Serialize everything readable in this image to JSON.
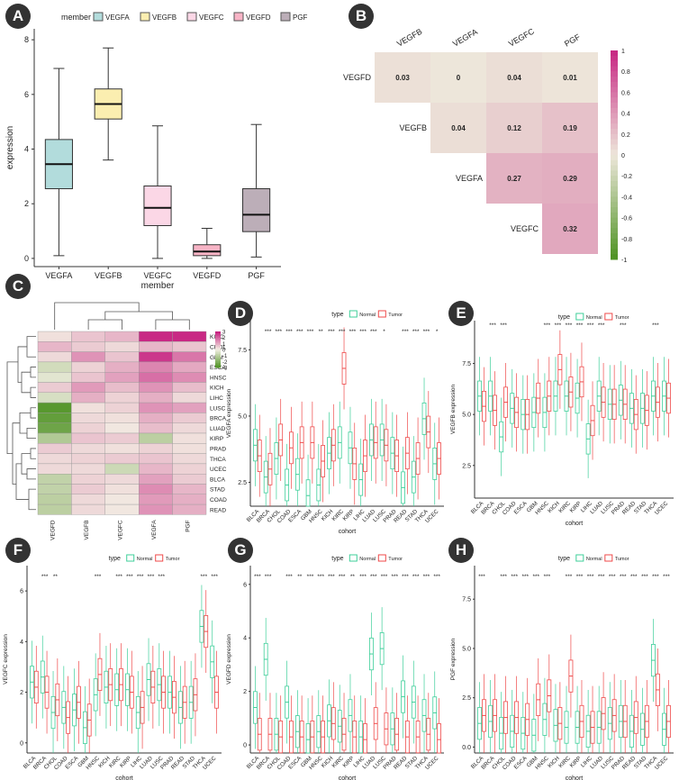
{
  "panels": {
    "a": "A",
    "b": "B",
    "c": "C",
    "d": "D",
    "e": "E",
    "f": "F",
    "g": "G",
    "h": "H"
  },
  "colors": {
    "normal": "#3ecf9a",
    "tumor": "#ef4a4a",
    "pink_high": "#c51b7d",
    "green_low": "#4d9221",
    "beige": "#ece5d8"
  },
  "chart_data": [
    {
      "id": "A",
      "type": "box",
      "legend_title": "member",
      "legend_position": "top",
      "xlabel": "member",
      "ylabel": "expression",
      "ylim": [
        -0.3,
        8.4
      ],
      "yticks": [
        0,
        2,
        4,
        6,
        8
      ],
      "categories": [
        "VEGFA",
        "VEGFB",
        "VEGFC",
        "VEGFD",
        "PGF"
      ],
      "fills": [
        "#b2dcdc",
        "#fbeeb0",
        "#fbd7e6",
        "#f8b4c6",
        "#bcaeb8"
      ],
      "boxes": [
        {
          "min": 0.1,
          "q1": 2.55,
          "median": 3.45,
          "q3": 4.35,
          "max": 6.95
        },
        {
          "min": 3.6,
          "q1": 5.1,
          "median": 5.65,
          "q3": 6.2,
          "max": 7.7
        },
        {
          "min": 0.0,
          "q1": 1.2,
          "median": 1.85,
          "q3": 2.65,
          "max": 4.85
        },
        {
          "min": 0.0,
          "q1": 0.1,
          "median": 0.25,
          "q3": 0.5,
          "max": 1.1
        },
        {
          "min": 0.05,
          "q1": 0.98,
          "median": 1.6,
          "q3": 2.55,
          "max": 4.9
        }
      ]
    },
    {
      "id": "B",
      "type": "heatmap",
      "subtype": "correlation-triangle",
      "columns": [
        "VEGFB",
        "VEGFA",
        "VEGFC",
        "PGF"
      ],
      "rows": [
        "VEGFD",
        "VEGFB",
        "VEGFA",
        "VEGFC"
      ],
      "values": [
        [
          0.03,
          0,
          0.04,
          0.01
        ],
        [
          null,
          0.04,
          0.12,
          0.19
        ],
        [
          null,
          null,
          0.27,
          0.29
        ],
        [
          null,
          null,
          null,
          0.32
        ]
      ],
      "labels": [
        [
          "0.03",
          "0",
          "0.04",
          "0.01"
        ],
        [
          "",
          "0.04",
          "0.12",
          "0.19"
        ],
        [
          "",
          "",
          "0.27",
          "0.29"
        ],
        [
          "",
          "",
          "",
          "0.32"
        ]
      ],
      "colorbar_range": [
        -1,
        1
      ],
      "colorbar_ticks": [
        "1",
        "0.8",
        "0.6",
        "0.4",
        "0.2",
        "0",
        "-0.2",
        "-0.4",
        "-0.6",
        "-0.8",
        "-1"
      ]
    },
    {
      "id": "C",
      "type": "heatmap",
      "subtype": "clustered",
      "rows": [
        "KIRC",
        "CHOL",
        "GBM",
        "ESCA",
        "HNSC",
        "KICH",
        "LIHC",
        "LUSC",
        "BRCA",
        "LUAD",
        "KIRP",
        "PRAD",
        "THCA",
        "UCEC",
        "BLCA",
        "STAD",
        "COAD",
        "READ"
      ],
      "columns": [
        "VEGFD",
        "VEGFB",
        "VEGFC",
        "VEGFA",
        "PGF"
      ],
      "values": [
        [
          0.2,
          0.6,
          0.8,
          2.8,
          2.8
        ],
        [
          0.8,
          0.5,
          0.3,
          0.8,
          0.6
        ],
        [
          0.3,
          1.3,
          0.6,
          2.6,
          1.7
        ],
        [
          -0.6,
          0.4,
          0.9,
          1.5,
          1.0
        ],
        [
          -0.3,
          0.6,
          1.1,
          1.8,
          1.4
        ],
        [
          0.5,
          1.2,
          0.7,
          1.3,
          0.7
        ],
        [
          -0.5,
          0.9,
          0.4,
          0.9,
          0.3
        ],
        [
          -2.8,
          0.2,
          0.4,
          1.3,
          1.1
        ],
        [
          -2.6,
          0.3,
          0.2,
          0.9,
          0.5
        ],
        [
          -2.4,
          0.4,
          0.1,
          0.7,
          0.3
        ],
        [
          -1.2,
          0.6,
          0.5,
          -1.0,
          0.2
        ],
        [
          0.5,
          0.3,
          0.2,
          0.4,
          0.2
        ],
        [
          0.3,
          0.4,
          0.5,
          0.6,
          0.3
        ],
        [
          0.3,
          0.3,
          -0.7,
          0.8,
          0.4
        ],
        [
          -0.9,
          0.4,
          0.3,
          1.1,
          0.5
        ],
        [
          -0.9,
          0.5,
          0.2,
          1.4,
          0.8
        ],
        [
          -1.0,
          0.3,
          0.1,
          1.2,
          0.9
        ],
        [
          -1.0,
          0.3,
          0.1,
          1.3,
          0.9
        ]
      ],
      "colorbar_range": [
        -3,
        3
      ],
      "colorbar_ticks": [
        "3",
        "2",
        "1",
        "0",
        "-1",
        "-2",
        "-3"
      ]
    },
    {
      "id": "D",
      "type": "box",
      "subtype": "grouped",
      "legend_title": "type",
      "series": [
        "Normal",
        "Tumor"
      ],
      "xlabel": "cohort",
      "ylabel": "VEGFA expression",
      "ylim": [
        1.6,
        8.6
      ],
      "yticks": [
        2.5,
        5.0,
        7.5
      ],
      "ytick_labels": [
        "2.5",
        "5.0",
        "7.5"
      ],
      "categories": [
        "BLCA",
        "BRCA",
        "CHOL",
        "COAD",
        "ESCA",
        "GBM",
        "HNSC",
        "KICH",
        "KIRC",
        "KIRP",
        "LIHC",
        "LUAD",
        "LUSC",
        "PRAD",
        "READ",
        "STAD",
        "THCA",
        "UCEC"
      ],
      "significance": [
        "",
        "***",
        "***",
        "***",
        "***",
        "***",
        "**",
        "***",
        "***",
        "***",
        "***",
        "***",
        "*",
        "",
        "***",
        "***",
        "***",
        "*"
      ],
      "normal_medians": [
        3.9,
        2.7,
        3.4,
        2.4,
        2.8,
        2.0,
        2.4,
        3.6,
        4.0,
        3.8,
        2.6,
        4.1,
        4.1,
        3.6,
        2.3,
        2.7,
        4.9,
        3.2
      ],
      "tumor_medians": [
        3.5,
        3.0,
        4.1,
        3.8,
        4.0,
        4.0,
        3.3,
        3.9,
        6.8,
        3.2,
        3.5,
        4.0,
        3.9,
        3.5,
        3.6,
        3.4,
        4.4,
        3.4
      ]
    },
    {
      "id": "E",
      "type": "box",
      "subtype": "grouped",
      "legend_title": "type",
      "series": [
        "Normal",
        "Tumor"
      ],
      "xlabel": "cohort",
      "ylabel": "VEGFB expression",
      "ylim": [
        0.9,
        9.6
      ],
      "yticks": [
        2.5,
        5.0,
        7.5
      ],
      "ytick_labels": [
        "2.5",
        "5.0",
        "7.5"
      ],
      "categories": [
        "BLCA",
        "BRCA",
        "CHOL",
        "COAD",
        "ESCA",
        "GBM",
        "HNSC",
        "KICH",
        "KIRC",
        "KIRP",
        "LIHC",
        "LUAD",
        "LUSC",
        "PRAD",
        "READ",
        "STAD",
        "THCA",
        "UCEC"
      ],
      "significance": [
        "",
        "***",
        "***",
        "",
        "",
        "",
        "***",
        "***",
        "***",
        "***",
        "***",
        "***",
        "",
        "***",
        "",
        "",
        "***",
        ""
      ],
      "normal_medians": [
        5.9,
        5.9,
        3.9,
        5.3,
        5.0,
        5.1,
        5.1,
        5.9,
        5.9,
        5.8,
        3.8,
        5.9,
        5.5,
        5.7,
        5.3,
        5.3,
        5.9,
        5.9
      ],
      "tumor_medians": [
        5.4,
        5.2,
        5.6,
        5.1,
        5.0,
        5.8,
        5.9,
        7.2,
        6.1,
        6.6,
        4.7,
        5.6,
        5.5,
        5.5,
        5.0,
        5.2,
        5.6,
        5.8
      ]
    },
    {
      "id": "F",
      "type": "box",
      "subtype": "grouped",
      "legend_title": "type",
      "series": [
        "Normal",
        "Tumor"
      ],
      "xlabel": "cohort",
      "ylabel": "VEGFC expression",
      "ylim": [
        -0.4,
        7.0
      ],
      "yticks": [
        0,
        2,
        4,
        6
      ],
      "ytick_labels": [
        "0",
        "2",
        "4",
        "6"
      ],
      "categories": [
        "BLCA",
        "BRCA",
        "CHOL",
        "COAD",
        "ESCA",
        "GBM",
        "HNSC",
        "KICH",
        "KIRC",
        "KIRP",
        "LIHC",
        "LUAD",
        "LUSC",
        "PRAD",
        "READ",
        "STAD",
        "THCA",
        "UCEC"
      ],
      "significance": [
        "",
        "***",
        "**",
        "",
        "",
        "",
        "***",
        "",
        "***",
        "***",
        "***",
        "***",
        "***",
        "",
        "",
        "",
        "***",
        "***"
      ],
      "normal_medians": [
        2.4,
        2.6,
        1.2,
        1.4,
        1.3,
        0.6,
        1.9,
        2.2,
        2.1,
        2.1,
        1.2,
        2.5,
        2.3,
        2.0,
        1.4,
        1.6,
        4.6,
        3.2
      ],
      "tumor_medians": [
        2.2,
        2.0,
        1.7,
        1.0,
        1.6,
        0.9,
        2.7,
        2.3,
        2.3,
        2.0,
        1.4,
        2.2,
        2.0,
        1.8,
        1.6,
        1.9,
        4.4,
        2.0
      ]
    },
    {
      "id": "G",
      "type": "box",
      "subtype": "grouped",
      "legend_title": "type",
      "series": [
        "Normal",
        "Tumor"
      ],
      "xlabel": "cohort",
      "ylabel": "VEGFD expression",
      "ylim": [
        -0.3,
        6.7
      ],
      "yticks": [
        0,
        2,
        4,
        6
      ],
      "ytick_labels": [
        "0",
        "2",
        "4",
        "6"
      ],
      "categories": [
        "BLCA",
        "BRCA",
        "CHOL",
        "COAD",
        "ESCA",
        "GBM",
        "HNSC",
        "KICH",
        "KIRC",
        "KIRP",
        "LIHC",
        "LUAD",
        "LUSC",
        "PRAD",
        "READ",
        "STAD",
        "THCA",
        "UCEC"
      ],
      "significance": [
        "***",
        "***",
        "",
        "***",
        "**",
        "***",
        "***",
        "***",
        "***",
        "**",
        "***",
        "***",
        "***",
        "***",
        "***",
        "***",
        "***",
        "***"
      ],
      "normal_medians": [
        1.4,
        3.2,
        0.4,
        1.6,
        0.5,
        0.2,
        0.5,
        0.9,
        0.7,
        1.1,
        0.3,
        3.4,
        3.6,
        0.6,
        1.8,
        1.6,
        1.1,
        1.2
      ],
      "tumor_medians": [
        0.4,
        0.4,
        0.3,
        0.3,
        0.3,
        0.3,
        0.3,
        0.8,
        0.4,
        0.3,
        0.2,
        0.8,
        0.6,
        0.4,
        0.3,
        0.3,
        0.4,
        0.2
      ]
    },
    {
      "id": "H",
      "type": "box",
      "subtype": "grouped",
      "legend_title": "type",
      "series": [
        "Normal",
        "Tumor"
      ],
      "xlabel": "cohort",
      "ylabel": "PGF expression",
      "ylim": [
        -0.3,
        9.2
      ],
      "yticks": [
        0.0,
        2.5,
        5.0,
        7.5
      ],
      "ytick_labels": [
        "0.0",
        "2.5",
        "5.0",
        "7.5"
      ],
      "categories": [
        "BLCA",
        "BRCA",
        "CHOL",
        "COAD",
        "ESCA",
        "GBM",
        "HNSC",
        "KICH",
        "KIRC",
        "KIRP",
        "LIHC",
        "LUAD",
        "LUSC",
        "PRAD",
        "READ",
        "STAD",
        "THCA",
        "UCEC"
      ],
      "significance": [
        "***",
        "",
        "***",
        "***",
        "***",
        "***",
        "***",
        "",
        "***",
        "***",
        "***",
        "***",
        "***",
        "***",
        "***",
        "***",
        "***",
        "***"
      ],
      "normal_medians": [
        1.2,
        1.3,
        0.7,
        0.8,
        0.7,
        0.6,
        1.4,
        1.1,
        1.0,
        1.0,
        0.8,
        1.0,
        1.2,
        1.3,
        0.8,
        0.9,
        4.4,
        0.9
      ],
      "tumor_medians": [
        1.6,
        1.6,
        1.5,
        1.5,
        1.4,
        2.4,
        2.6,
        1.2,
        3.6,
        1.3,
        1.0,
        1.7,
        1.6,
        1.3,
        1.5,
        1.3,
        2.9,
        1.3
      ]
    }
  ]
}
